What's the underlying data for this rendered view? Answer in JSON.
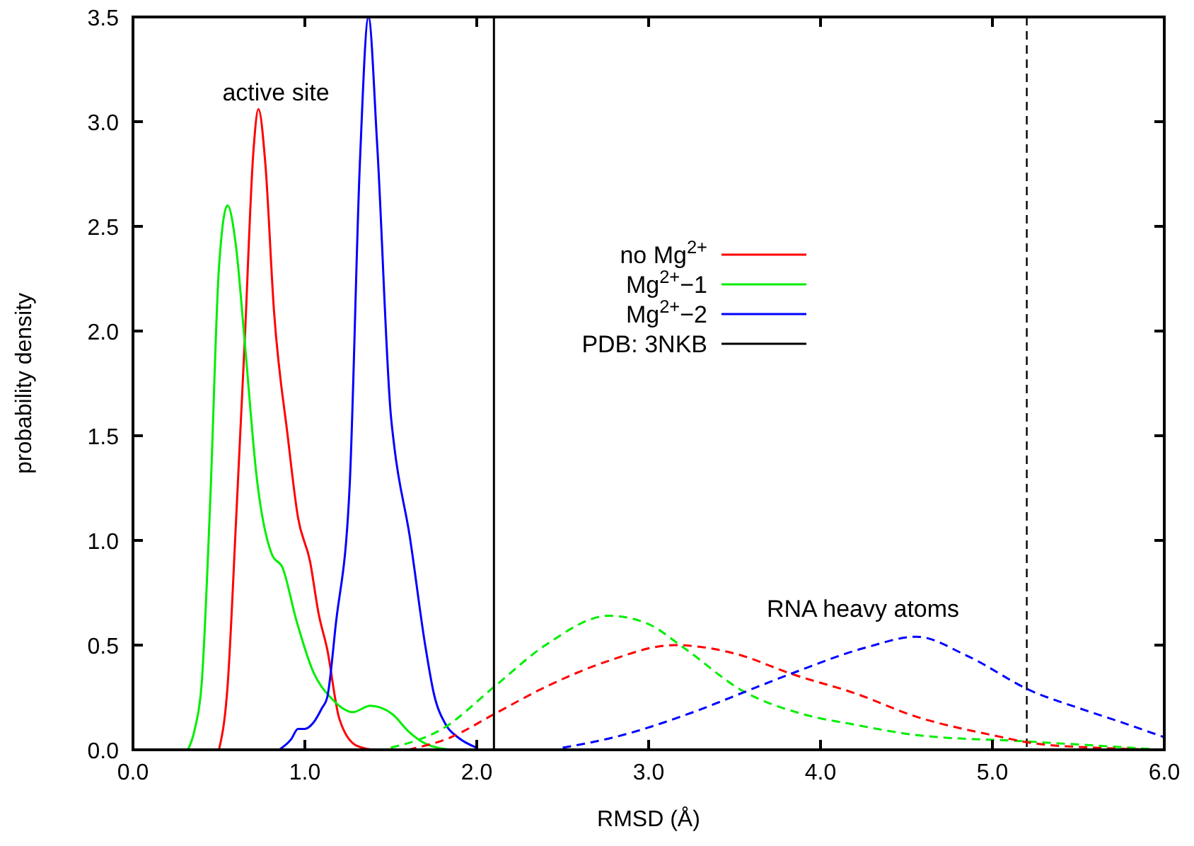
{
  "chart_data": {
    "type": "line",
    "xlabel": "RMSD (Å)",
    "ylabel": "probability density",
    "xlim": [
      0,
      6
    ],
    "ylim": [
      0,
      3.5
    ],
    "xticks": [
      {
        "value": 0,
        "label": "0.0"
      },
      {
        "value": 1,
        "label": "1.0"
      },
      {
        "value": 2,
        "label": "2.0"
      },
      {
        "value": 3,
        "label": "3.0"
      },
      {
        "value": 4,
        "label": "4.0"
      },
      {
        "value": 5,
        "label": "5.0"
      },
      {
        "value": 6,
        "label": "6.0"
      }
    ],
    "yticks": [
      {
        "value": 0,
        "label": "0.0"
      },
      {
        "value": 0.5,
        "label": "0.5"
      },
      {
        "value": 1,
        "label": "1.0"
      },
      {
        "value": 1.5,
        "label": "1.5"
      },
      {
        "value": 2,
        "label": "2.0"
      },
      {
        "value": 2.5,
        "label": "2.5"
      },
      {
        "value": 3,
        "label": "3.0"
      },
      {
        "value": 3.5,
        "label": "3.5"
      }
    ],
    "grid": false,
    "legend": "top right",
    "marker": "none",
    "series": [
      {
        "name": "no Mg$^{2+}$",
        "color": "#ff0000",
        "line_style": "solid",
        "x": [
          0.5,
          0.55,
          0.6,
          0.65,
          0.7,
          0.73,
          0.77,
          0.82,
          0.9,
          0.96,
          1.03,
          1.08,
          1.13,
          1.2,
          1.3,
          1.4
        ],
        "values": [
          0,
          0.3,
          1.1,
          1.95,
          2.85,
          3.06,
          2.8,
          2.1,
          1.5,
          1.11,
          0.9,
          0.65,
          0.48,
          0.15,
          0.02,
          0
        ]
      },
      {
        "name": "Mg$^{2+}$−1",
        "color": "#00ee00",
        "line_style": "solid",
        "x": [
          0.32,
          0.36,
          0.4,
          0.45,
          0.5,
          0.55,
          0.6,
          0.65,
          0.72,
          0.81,
          0.87,
          0.95,
          1.05,
          1.15,
          1.28,
          1.38,
          1.51,
          1.6,
          1.7,
          1.85
        ],
        "values": [
          0,
          0.1,
          0.32,
          1.2,
          2.3,
          2.6,
          2.4,
          1.95,
          1.3,
          0.93,
          0.87,
          0.62,
          0.37,
          0.25,
          0.18,
          0.21,
          0.17,
          0.09,
          0.03,
          0
        ]
      },
      {
        "name": "Mg$^{2+}$−2",
        "color": "#0000ff",
        "line_style": "solid",
        "x": [
          0.85,
          0.92,
          0.96,
          1.0,
          1.05,
          1.1,
          1.13,
          1.18,
          1.26,
          1.32,
          1.37,
          1.42,
          1.5,
          1.52,
          1.61,
          1.7,
          1.75,
          1.82,
          1.89,
          2.0
        ],
        "values": [
          0,
          0.05,
          0.1,
          0.1,
          0.13,
          0.2,
          0.25,
          0.6,
          1.25,
          2.8,
          3.5,
          2.9,
          1.6,
          1.45,
          1.02,
          0.5,
          0.27,
          0.12,
          0.06,
          0.01
        ]
      },
      {
        "color": "#00ee00",
        "line_style": "dashed",
        "x": [
          1.5,
          1.8,
          2.1,
          2.4,
          2.77,
          3.0,
          3.2,
          3.55,
          3.9,
          4.2,
          4.56,
          5.2,
          6.0
        ],
        "values": [
          0.01,
          0.1,
          0.3,
          0.5,
          0.64,
          0.6,
          0.49,
          0.28,
          0.17,
          0.12,
          0.07,
          0.04,
          0
        ]
      },
      {
        "color": "#ff0000",
        "line_style": "dashed",
        "x": [
          1.6,
          1.85,
          2.1,
          2.4,
          2.75,
          3.15,
          3.5,
          3.84,
          4.2,
          4.55,
          5.0,
          5.25,
          5.6,
          6.0
        ],
        "values": [
          0,
          0.06,
          0.17,
          0.3,
          0.42,
          0.5,
          0.46,
          0.36,
          0.27,
          0.16,
          0.07,
          0.03,
          0.01,
          0
        ]
      },
      {
        "name": "PDB: 3NKB",
        "color": "#000000",
        "line_style": "solid",
        "x": [
          2.1,
          2.1
        ],
        "values": [
          0,
          3.5
        ]
      },
      {
        "color": "#0000ff",
        "line_style": "dashed",
        "x": [
          2.5,
          2.8,
          3.26,
          3.6,
          3.85,
          4.27,
          4.56,
          4.85,
          5.23,
          5.5,
          5.72,
          6.0
        ],
        "values": [
          0.01,
          0.06,
          0.18,
          0.29,
          0.37,
          0.49,
          0.54,
          0.45,
          0.28,
          0.2,
          0.14,
          0.06
        ]
      }
    ],
    "ref_lines": [
      {
        "axis": "x",
        "value": 5.2,
        "color": "#000000",
        "line_style": "dashed"
      }
    ],
    "annotations": [
      "active site",
      "RNA heavy atoms"
    ]
  }
}
